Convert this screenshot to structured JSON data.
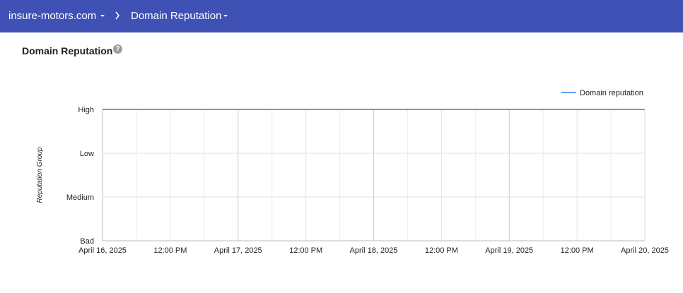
{
  "header": {
    "domain": "insure-motors.com",
    "section": "Domain Reputation"
  },
  "card": {
    "title": "Domain Reputation",
    "help": "?"
  },
  "chart_data": {
    "type": "line",
    "y_label": "Reputation Group",
    "x": [
      "2025-04-16T00:00",
      "2025-04-17T00:00",
      "2025-04-18T00:00",
      "2025-04-19T00:00",
      "2025-04-20T00:00"
    ],
    "series": [
      {
        "name": "Domain reputation",
        "color": "#5b9bef",
        "values": [
          3,
          3,
          3,
          3,
          3
        ]
      }
    ],
    "xlim": [
      "2025-04-16T00:00",
      "2025-04-20T00:00"
    ],
    "xticks": [
      {
        "value": "2025-04-16T00:00",
        "label": "April 16, 2025"
      },
      {
        "value": "2025-04-16T12:00",
        "label": "12:00 PM"
      },
      {
        "value": "2025-04-17T00:00",
        "label": "April 17, 2025"
      },
      {
        "value": "2025-04-17T12:00",
        "label": "12:00 PM"
      },
      {
        "value": "2025-04-18T00:00",
        "label": "April 18, 2025"
      },
      {
        "value": "2025-04-18T12:00",
        "label": "12:00 PM"
      },
      {
        "value": "2025-04-19T00:00",
        "label": "April 19, 2025"
      },
      {
        "value": "2025-04-19T12:00",
        "label": "12:00 PM"
      },
      {
        "value": "2025-04-20T00:00",
        "label": "April 20, 2025"
      }
    ],
    "ylim": [
      0,
      3
    ],
    "yticks": [
      {
        "value": 0,
        "label": "Bad"
      },
      {
        "value": 1,
        "label": "Medium"
      },
      {
        "value": 2,
        "label": "Low"
      },
      {
        "value": 3,
        "label": "High"
      }
    ],
    "legend": "top-right",
    "grid": true
  }
}
